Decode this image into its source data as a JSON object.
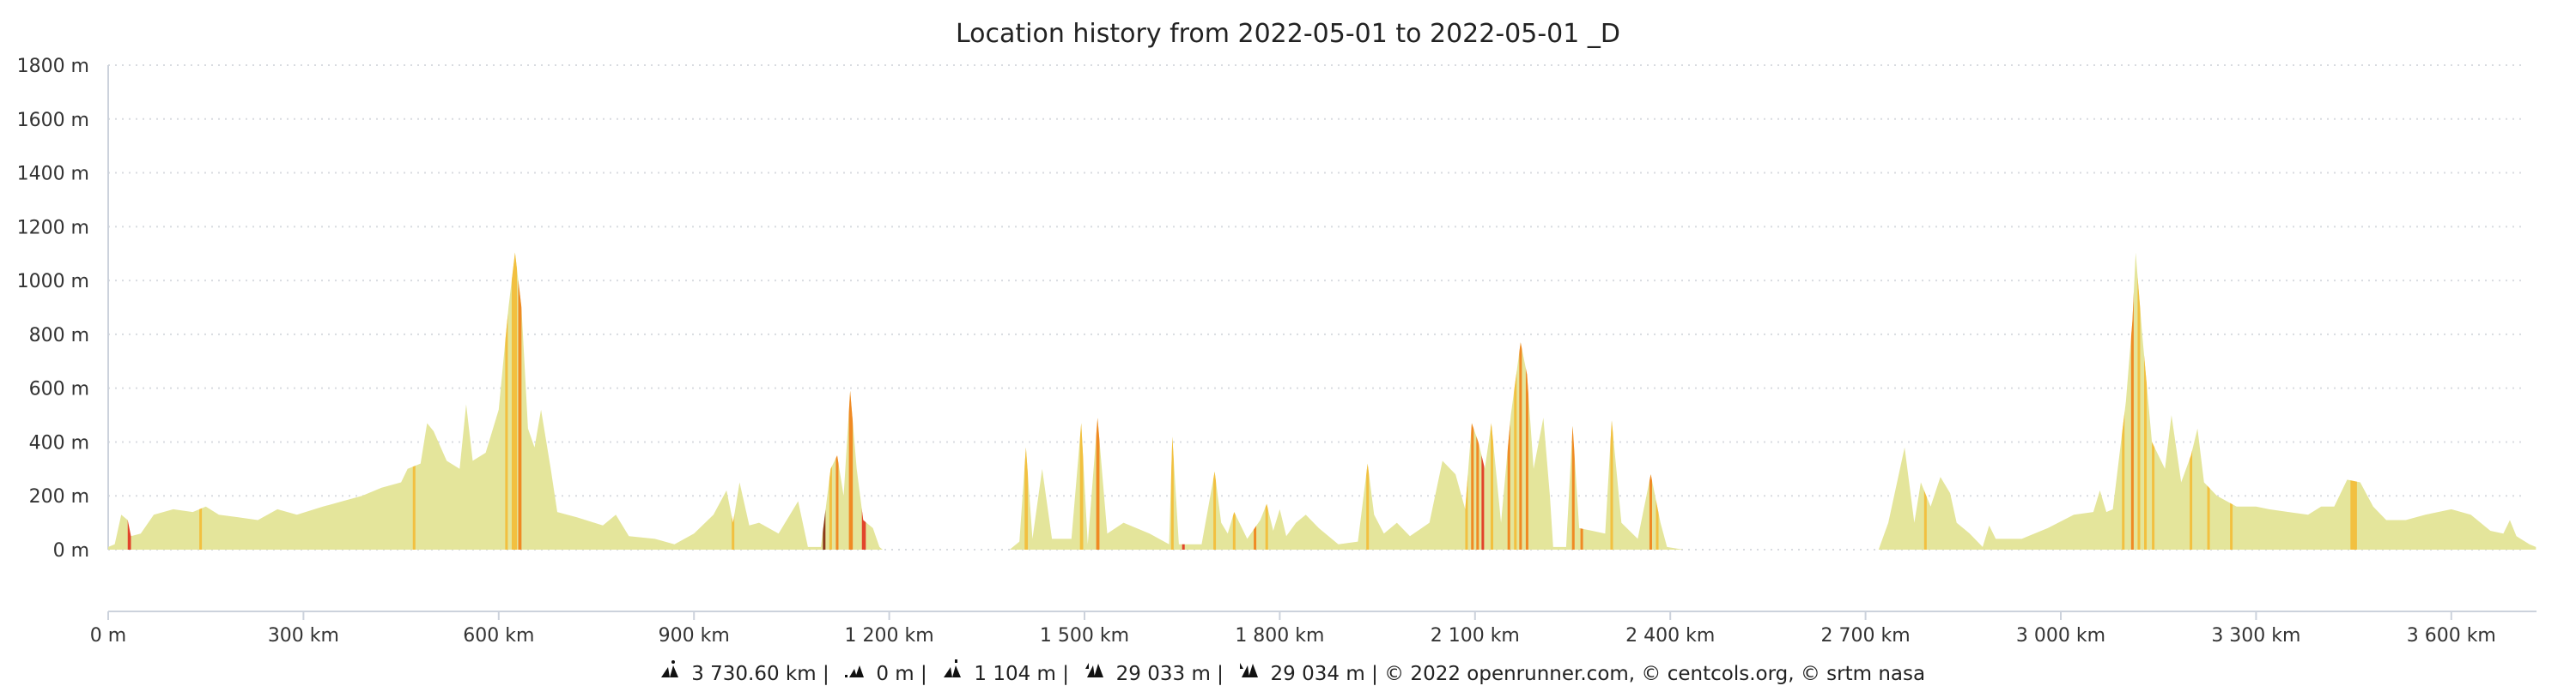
{
  "chart_data": {
    "type": "area",
    "title": "Location history from 2022-05-01 to 2022-05-01 _D",
    "xlabel": "",
    "ylabel": "",
    "xlim": [
      0,
      3730.6
    ],
    "ylim": [
      0,
      1800
    ],
    "grid": true,
    "y_ticks": [
      0,
      200,
      400,
      600,
      800,
      1000,
      1200,
      1400,
      1600,
      1800
    ],
    "y_tick_labels": [
      "0 m",
      "200 m",
      "400 m",
      "600 m",
      "800 m",
      "1000 m",
      "1200 m",
      "1400 m",
      "1600 m",
      "1800 m"
    ],
    "x_ticks": [
      0,
      300,
      600,
      900,
      1200,
      1500,
      1800,
      2100,
      2400,
      2700,
      3000,
      3300,
      3600
    ],
    "x_tick_labels": [
      "0 m",
      "300 km",
      "600 km",
      "900 km",
      "1 200 km",
      "1 500 km",
      "1 800 km",
      "2 100 km",
      "2 400 km",
      "2 700 km",
      "3 000 km",
      "3 300 km",
      "3 600 km"
    ],
    "colors": {
      "fill": "#e4e59b",
      "yellow": "#f2c040",
      "orange": "#f08a24",
      "red": "#e2442b",
      "brown": "#8b3a1a"
    },
    "profile_km_m": [
      [
        0,
        10
      ],
      [
        10,
        20
      ],
      [
        20,
        130
      ],
      [
        30,
        110
      ],
      [
        35,
        50
      ],
      [
        50,
        60
      ],
      [
        70,
        130
      ],
      [
        100,
        150
      ],
      [
        130,
        140
      ],
      [
        150,
        160
      ],
      [
        170,
        130
      ],
      [
        200,
        120
      ],
      [
        230,
        110
      ],
      [
        260,
        150
      ],
      [
        290,
        130
      ],
      [
        330,
        160
      ],
      [
        360,
        180
      ],
      [
        390,
        200
      ],
      [
        420,
        230
      ],
      [
        450,
        250
      ],
      [
        460,
        300
      ],
      [
        480,
        320
      ],
      [
        490,
        470
      ],
      [
        500,
        440
      ],
      [
        520,
        330
      ],
      [
        540,
        300
      ],
      [
        550,
        540
      ],
      [
        560,
        330
      ],
      [
        580,
        360
      ],
      [
        600,
        520
      ],
      [
        615,
        900
      ],
      [
        625,
        1104
      ],
      [
        635,
        900
      ],
      [
        645,
        450
      ],
      [
        655,
        380
      ],
      [
        665,
        520
      ],
      [
        680,
        300
      ],
      [
        690,
        140
      ],
      [
        720,
        120
      ],
      [
        760,
        90
      ],
      [
        780,
        130
      ],
      [
        800,
        50
      ],
      [
        840,
        40
      ],
      [
        870,
        20
      ],
      [
        900,
        60
      ],
      [
        930,
        130
      ],
      [
        950,
        220
      ],
      [
        960,
        100
      ],
      [
        970,
        250
      ],
      [
        985,
        90
      ],
      [
        1000,
        100
      ],
      [
        1030,
        60
      ],
      [
        1060,
        180
      ],
      [
        1075,
        10
      ],
      [
        1095,
        10
      ],
      [
        1110,
        300
      ],
      [
        1120,
        350
      ],
      [
        1130,
        200
      ],
      [
        1140,
        590
      ],
      [
        1150,
        300
      ],
      [
        1160,
        110
      ],
      [
        1175,
        80
      ],
      [
        1185,
        10
      ],
      [
        1190,
        0
      ],
      [
        1385,
        0
      ],
      [
        1400,
        30
      ],
      [
        1410,
        380
      ],
      [
        1420,
        40
      ],
      [
        1435,
        300
      ],
      [
        1450,
        40
      ],
      [
        1480,
        40
      ],
      [
        1495,
        470
      ],
      [
        1505,
        20
      ],
      [
        1520,
        490
      ],
      [
        1535,
        60
      ],
      [
        1560,
        100
      ],
      [
        1600,
        60
      ],
      [
        1630,
        20
      ],
      [
        1635,
        420
      ],
      [
        1645,
        20
      ],
      [
        1680,
        20
      ],
      [
        1700,
        290
      ],
      [
        1710,
        100
      ],
      [
        1720,
        60
      ],
      [
        1730,
        140
      ],
      [
        1750,
        40
      ],
      [
        1770,
        110
      ],
      [
        1780,
        170
      ],
      [
        1790,
        70
      ],
      [
        1800,
        150
      ],
      [
        1810,
        50
      ],
      [
        1825,
        100
      ],
      [
        1840,
        130
      ],
      [
        1860,
        80
      ],
      [
        1890,
        20
      ],
      [
        1920,
        30
      ],
      [
        1935,
        320
      ],
      [
        1945,
        130
      ],
      [
        1960,
        60
      ],
      [
        1980,
        100
      ],
      [
        2000,
        50
      ],
      [
        2030,
        100
      ],
      [
        2050,
        330
      ],
      [
        2070,
        280
      ],
      [
        2085,
        150
      ],
      [
        2095,
        470
      ],
      [
        2105,
        400
      ],
      [
        2115,
        300
      ],
      [
        2125,
        470
      ],
      [
        2140,
        100
      ],
      [
        2155,
        500
      ],
      [
        2170,
        770
      ],
      [
        2180,
        650
      ],
      [
        2190,
        300
      ],
      [
        2205,
        490
      ],
      [
        2215,
        200
      ],
      [
        2220,
        10
      ],
      [
        2240,
        10
      ],
      [
        2250,
        460
      ],
      [
        2260,
        80
      ],
      [
        2280,
        70
      ],
      [
        2300,
        60
      ],
      [
        2310,
        480
      ],
      [
        2325,
        100
      ],
      [
        2350,
        40
      ],
      [
        2370,
        280
      ],
      [
        2385,
        100
      ],
      [
        2395,
        10
      ],
      [
        2420,
        0
      ],
      [
        2720,
        0
      ],
      [
        2735,
        100
      ],
      [
        2760,
        380
      ],
      [
        2775,
        100
      ],
      [
        2785,
        250
      ],
      [
        2800,
        160
      ],
      [
        2815,
        270
      ],
      [
        2830,
        210
      ],
      [
        2840,
        100
      ],
      [
        2860,
        60
      ],
      [
        2880,
        10
      ],
      [
        2890,
        90
      ],
      [
        2900,
        40
      ],
      [
        2940,
        40
      ],
      [
        2980,
        80
      ],
      [
        3020,
        130
      ],
      [
        3050,
        140
      ],
      [
        3060,
        220
      ],
      [
        3070,
        140
      ],
      [
        3080,
        150
      ],
      [
        3100,
        550
      ],
      [
        3110,
        850
      ],
      [
        3115,
        1104
      ],
      [
        3125,
        800
      ],
      [
        3140,
        400
      ],
      [
        3160,
        300
      ],
      [
        3170,
        500
      ],
      [
        3185,
        250
      ],
      [
        3200,
        350
      ],
      [
        3210,
        450
      ],
      [
        3220,
        250
      ],
      [
        3240,
        200
      ],
      [
        3270,
        160
      ],
      [
        3300,
        160
      ],
      [
        3320,
        150
      ],
      [
        3350,
        140
      ],
      [
        3380,
        130
      ],
      [
        3400,
        160
      ],
      [
        3420,
        160
      ],
      [
        3440,
        260
      ],
      [
        3460,
        250
      ],
      [
        3480,
        160
      ],
      [
        3500,
        110
      ],
      [
        3530,
        110
      ],
      [
        3560,
        130
      ],
      [
        3600,
        150
      ],
      [
        3630,
        130
      ],
      [
        3660,
        70
      ],
      [
        3680,
        60
      ],
      [
        3690,
        110
      ],
      [
        3700,
        50
      ],
      [
        3720,
        20
      ],
      [
        3730,
        10
      ]
    ],
    "steep_segments_km": [
      [
        30,
        5,
        "red"
      ],
      [
        140,
        3,
        "yellow"
      ],
      [
        468,
        4,
        "yellow"
      ],
      [
        610,
        4,
        "yellow"
      ],
      [
        620,
        8,
        "yellow"
      ],
      [
        630,
        5,
        "orange"
      ],
      [
        958,
        4,
        "yellow"
      ],
      [
        1098,
        4,
        "brown"
      ],
      [
        1108,
        4,
        "yellow"
      ],
      [
        1118,
        4,
        "orange"
      ],
      [
        1138,
        6,
        "orange"
      ],
      [
        1158,
        6,
        "red"
      ],
      [
        1408,
        5,
        "yellow"
      ],
      [
        1493,
        5,
        "yellow"
      ],
      [
        1518,
        5,
        "orange"
      ],
      [
        1633,
        4,
        "yellow"
      ],
      [
        1650,
        3,
        "red"
      ],
      [
        1698,
        3,
        "yellow"
      ],
      [
        1728,
        3,
        "yellow"
      ],
      [
        1760,
        3,
        "orange"
      ],
      [
        1778,
        4,
        "yellow"
      ],
      [
        1933,
        4,
        "yellow"
      ],
      [
        2085,
        3,
        "yellow"
      ],
      [
        2094,
        4,
        "orange"
      ],
      [
        2102,
        3,
        "orange"
      ],
      [
        2110,
        3,
        "red"
      ],
      [
        2124,
        4,
        "yellow"
      ],
      [
        2150,
        4,
        "orange"
      ],
      [
        2160,
        4,
        "yellow"
      ],
      [
        2168,
        4,
        "orange"
      ],
      [
        2178,
        4,
        "orange"
      ],
      [
        2249,
        4,
        "orange"
      ],
      [
        2262,
        3,
        "orange"
      ],
      [
        2308,
        4,
        "yellow"
      ],
      [
        2368,
        4,
        "orange"
      ],
      [
        2378,
        3,
        "yellow"
      ],
      [
        2790,
        3,
        "yellow"
      ],
      [
        3094,
        3,
        "yellow"
      ],
      [
        3108,
        4,
        "orange"
      ],
      [
        3118,
        4,
        "yellow"
      ],
      [
        3128,
        3,
        "yellow"
      ],
      [
        3140,
        3,
        "yellow"
      ],
      [
        3198,
        3,
        "yellow"
      ],
      [
        3225,
        3,
        "yellow"
      ],
      [
        3260,
        3,
        "yellow"
      ],
      [
        3445,
        10,
        "yellow"
      ]
    ]
  },
  "footer": {
    "distance": "3 730.60 km",
    "min_alt": "0 m",
    "max_alt": "1 104 m",
    "ascent": "29 033 m",
    "descent": "29 034 m",
    "credits": "© 2022 openrunner.com, © centcols.org, © srtm nasa",
    "separator": "|"
  }
}
